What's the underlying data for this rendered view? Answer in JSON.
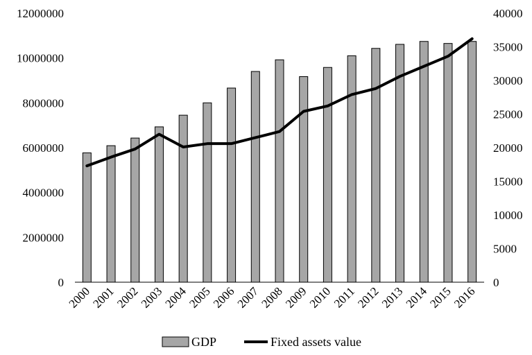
{
  "chart_data": {
    "type": "bar",
    "title": "",
    "xlabel": "",
    "ylabel": "",
    "categories": [
      "2000",
      "2001",
      "2002",
      "2003",
      "2004",
      "2005",
      "2006",
      "2007",
      "2008",
      "2009",
      "2010",
      "2011",
      "2012",
      "2013",
      "2014",
      "2015",
      "2016"
    ],
    "series": [
      {
        "name": "GDP",
        "type": "bar",
        "axis": "left",
        "color": "#a6a6a6",
        "values": [
          5770000,
          6090000,
          6430000,
          6930000,
          7450000,
          8000000,
          8660000,
          9400000,
          9920000,
          9170000,
          9580000,
          10100000,
          10430000,
          10610000,
          10740000,
          10650000,
          10740000
        ]
      },
      {
        "name": "Fixed assets value",
        "type": "line",
        "axis": "right",
        "color": "#000000",
        "values": [
          17300,
          18600,
          19800,
          22000,
          20100,
          20600,
          20600,
          21500,
          22400,
          25400,
          26200,
          27900,
          28800,
          30600,
          32100,
          33600,
          36200
        ]
      }
    ],
    "y_left": {
      "min": 0,
      "max": 12000000,
      "ticks": [
        "0",
        "2000000",
        "4000000",
        "6000000",
        "8000000",
        "10000000",
        "12000000"
      ]
    },
    "y_right": {
      "min": 0,
      "max": 40000,
      "ticks": [
        "0",
        "5000",
        "10000",
        "15000",
        "20000",
        "25000",
        "30000",
        "35000",
        "40000"
      ]
    },
    "grid": false,
    "legend": "bottom"
  }
}
